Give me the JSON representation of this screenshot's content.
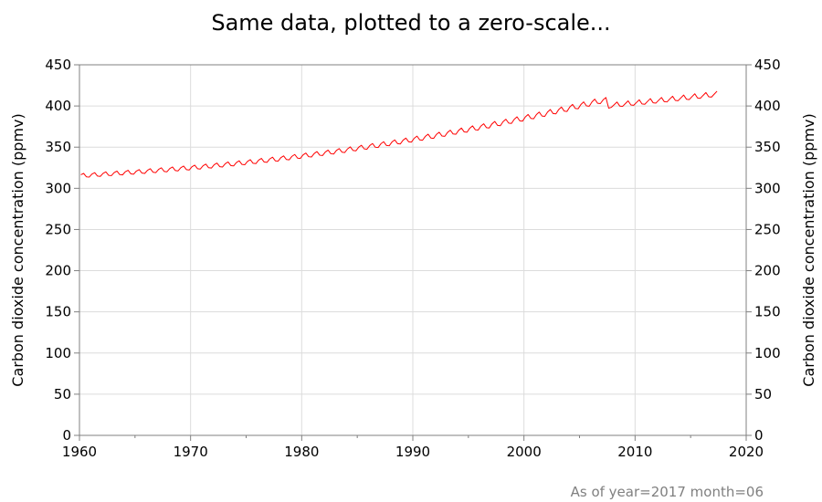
{
  "chart_data": {
    "type": "line",
    "title": "Same data, plotted to a zero-scale...",
    "xlabel": "",
    "ylabel": "Carbon dioxide concentration (ppmv)",
    "ylabel_right": "Carbon dioxide concentration (ppmv)",
    "footnote": "As of year=2017 month=06",
    "xlim": [
      1960,
      2020
    ],
    "ylim": [
      0,
      450
    ],
    "x_ticks": [
      1960,
      1970,
      1980,
      1990,
      2000,
      2010,
      2020
    ],
    "y_ticks": [
      0,
      50,
      100,
      150,
      200,
      250,
      300,
      350,
      400,
      450
    ],
    "grid": true,
    "series_color": "#ff0000",
    "series": [
      {
        "x": [
          1960.125,
          1960.375,
          1960.625,
          1960.875,
          1961.125,
          1961.375,
          1961.625,
          1961.875,
          1962.125,
          1962.375,
          1962.625,
          1962.875,
          1963.125,
          1963.375,
          1963.625,
          1963.875,
          1964.125,
          1964.375,
          1964.625,
          1964.875,
          1965.125,
          1965.375,
          1965.625,
          1965.875,
          1966.125,
          1966.375,
          1966.625,
          1966.875,
          1967.125,
          1967.375,
          1967.625,
          1967.875,
          1968.125,
          1968.375,
          1968.625,
          1968.875,
          1969.125,
          1969.375,
          1969.625,
          1969.875,
          1970.125,
          1970.375,
          1970.625,
          1970.875,
          1971.125,
          1971.375,
          1971.625,
          1971.875,
          1972.125,
          1972.375,
          1972.625,
          1972.875,
          1973.125,
          1973.375,
          1973.625,
          1973.875,
          1974.125,
          1974.375,
          1974.625,
          1974.875,
          1975.125,
          1975.375,
          1975.625,
          1975.875,
          1976.125,
          1976.375,
          1976.625,
          1976.875,
          1977.125,
          1977.375,
          1977.625,
          1977.875,
          1978.125,
          1978.375,
          1978.625,
          1978.875,
          1979.125,
          1979.375,
          1979.625,
          1979.875,
          1980.125,
          1980.375,
          1980.625,
          1980.875,
          1981.125,
          1981.375,
          1981.625,
          1981.875,
          1982.125,
          1982.375,
          1982.625,
          1982.875,
          1983.125,
          1983.375,
          1983.625,
          1983.875,
          1984.125,
          1984.375,
          1984.625,
          1984.875,
          1985.125,
          1985.375,
          1985.625,
          1985.875,
          1986.125,
          1986.375,
          1986.625,
          1986.875,
          1987.125,
          1987.375,
          1987.625,
          1987.875,
          1988.125,
          1988.375,
          1988.625,
          1988.875,
          1989.125,
          1989.375,
          1989.625,
          1989.875,
          1990.125,
          1990.375,
          1990.625,
          1990.875,
          1991.125,
          1991.375,
          1991.625,
          1991.875,
          1992.125,
          1992.375,
          1992.625,
          1992.875,
          1993.125,
          1993.375,
          1993.625,
          1993.875,
          1994.125,
          1994.375,
          1994.625,
          1994.875,
          1995.125,
          1995.375,
          1995.625,
          1995.875,
          1996.125,
          1996.375,
          1996.625,
          1996.875,
          1997.125,
          1997.375,
          1997.625,
          1997.875,
          1998.125,
          1998.375,
          1998.625,
          1998.875,
          1999.125,
          1999.375,
          1999.625,
          1999.875,
          2000.125,
          2000.375,
          2000.625,
          2000.875,
          2001.125,
          2001.375,
          2001.625,
          2001.875,
          2002.125,
          2002.375,
          2002.625,
          2002.875,
          2003.125,
          2003.375,
          2003.625,
          2003.875,
          2004.125,
          2004.375,
          2004.625,
          2004.875,
          2005.125,
          2005.375,
          2005.625,
          2005.875,
          2006.125,
          2006.375,
          2006.625,
          2006.875,
          2007.125,
          2007.375,
          2007.625,
          2007.875,
          2008.125,
          2008.375,
          2008.625,
          2008.875,
          2009.125,
          2009.375,
          2009.625,
          2009.875,
          2010.125,
          2010.375,
          2010.625,
          2010.875,
          2011.125,
          2011.375,
          2011.625,
          2011.875,
          2012.125,
          2012.375,
          2012.625,
          2012.875,
          2013.125,
          2013.375,
          2013.625,
          2013.875,
          2014.125,
          2014.375,
          2014.625,
          2014.875,
          2015.125,
          2015.375,
          2015.625,
          2015.875,
          2016.125,
          2016.375,
          2016.625,
          2016.875,
          2017.125,
          2017.375
        ],
        "y": [
          316.5,
          318.1,
          314.0,
          313.6,
          317.3,
          319.0,
          314.9,
          314.5,
          318.2,
          320.0,
          315.8,
          315.4,
          319.1,
          320.9,
          316.7,
          316.3,
          320.1,
          321.9,
          317.6,
          317.2,
          321.0,
          322.8,
          318.5,
          318.1,
          321.9,
          323.8,
          319.5,
          319.1,
          323.0,
          324.9,
          320.5,
          320.1,
          324.0,
          325.9,
          321.6,
          321.2,
          325.1,
          327.0,
          322.7,
          322.2,
          326.2,
          328.1,
          323.8,
          323.4,
          327.4,
          329.4,
          325.0,
          324.6,
          328.7,
          330.7,
          326.3,
          325.9,
          330.0,
          332.0,
          327.6,
          327.2,
          331.3,
          333.4,
          329.0,
          328.6,
          332.7,
          334.8,
          330.4,
          330.0,
          334.2,
          336.3,
          331.9,
          331.5,
          335.7,
          337.8,
          333.4,
          333.0,
          337.3,
          339.4,
          335.0,
          334.6,
          338.9,
          341.1,
          336.7,
          336.3,
          340.6,
          342.8,
          338.4,
          338.0,
          342.3,
          344.6,
          340.2,
          339.8,
          344.1,
          346.4,
          342.0,
          341.6,
          346.0,
          348.3,
          343.9,
          343.5,
          347.9,
          350.3,
          345.9,
          345.5,
          349.9,
          352.3,
          347.9,
          347.5,
          352.0,
          354.4,
          349.9,
          349.5,
          354.1,
          356.6,
          352.1,
          351.7,
          356.3,
          358.8,
          354.3,
          353.9,
          358.5,
          361.0,
          356.5,
          356.1,
          360.8,
          363.4,
          358.8,
          358.4,
          363.1,
          365.7,
          361.1,
          360.7,
          365.5,
          368.1,
          363.5,
          363.1,
          367.9,
          370.6,
          366.0,
          365.6,
          370.4,
          373.2,
          368.5,
          368.1,
          373.0,
          375.8,
          371.1,
          370.7,
          375.6,
          378.4,
          373.7,
          373.3,
          378.3,
          381.2,
          376.4,
          376.0,
          381.0,
          383.9,
          379.2,
          378.8,
          383.8,
          386.8,
          382.0,
          381.6,
          386.7,
          389.7,
          384.9,
          384.5,
          389.6,
          392.6,
          387.8,
          387.4,
          392.6,
          395.7,
          390.8,
          390.4,
          395.6,
          398.7,
          393.8,
          393.4,
          398.7,
          401.9,
          397.0,
          396.6,
          401.8,
          405.0,
          400.1,
          399.7,
          405.0,
          408.3,
          403.3,
          402.9,
          407.4,
          410.3,
          397.4,
          398.4,
          401.6,
          404.8,
          399.9,
          399.5,
          402.9,
          406.2,
          401.2,
          400.8,
          404.2,
          407.5,
          402.5,
          402.1,
          405.6,
          408.9,
          403.9,
          403.5,
          407.0,
          410.3,
          405.3,
          404.9,
          408.5,
          411.8,
          406.8,
          406.4,
          409.9,
          413.3,
          408.2,
          407.8,
          411.4,
          414.8,
          409.7,
          409.3,
          412.9,
          416.3,
          411.2,
          410.8,
          414.4,
          417.9
        ]
      }
    ]
  }
}
